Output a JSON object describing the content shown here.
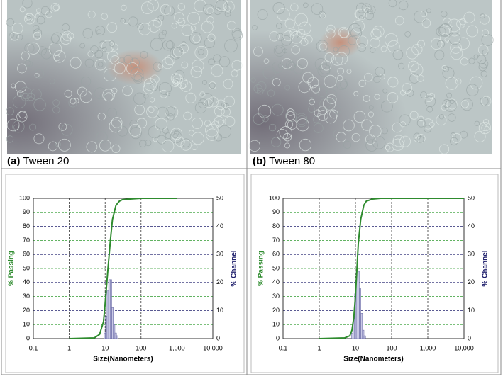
{
  "panels": [
    {
      "label": "(a)",
      "caption": "Tween 20"
    },
    {
      "label": "(b)",
      "caption": "Tween 80"
    }
  ],
  "chart_data": [
    {
      "type": "histogram",
      "xlabel": "Size(Nanometers)",
      "ylabel": "% Passing",
      "y2label": "% Channel",
      "xscale": "log",
      "xlim": [
        0.1,
        10000
      ],
      "xticks": [
        0.1,
        1,
        10,
        100,
        {
          "value": 1000,
          "label": "1,000"
        },
        {
          "value": 10000,
          "label": "10,000"
        }
      ],
      "ylim": [
        0,
        100
      ],
      "yticks": [
        0,
        10,
        20,
        30,
        40,
        50,
        60,
        70,
        80,
        90,
        100
      ],
      "y2lim": [
        0,
        50
      ],
      "y2ticks": [
        0,
        10,
        20,
        30,
        40,
        50
      ],
      "grid": true,
      "axis": "y2",
      "bar_color": "#c9c9e6",
      "bins": [
        9.25,
        10.2,
        11.3,
        12.5,
        13.8,
        15.3,
        16.9,
        18.7,
        20.7,
        22.9
      ],
      "values": [
        2,
        8,
        17,
        21,
        21,
        11,
        5,
        2,
        1
      ],
      "line": {
        "color": "#2e8b2e",
        "x": [
          1,
          5,
          7,
          9,
          10,
          12,
          14,
          16,
          20,
          25,
          30,
          50,
          100,
          1000
        ],
        "values": [
          0,
          0.5,
          3,
          12,
          25,
          50,
          70,
          85,
          95,
          98,
          99,
          99.5,
          100,
          100
        ]
      }
    },
    {
      "type": "histogram",
      "xlabel": "Size(Nanometers)",
      "ylabel": "% Passing",
      "y2label": "% Channel",
      "xscale": "log",
      "xlim": [
        0.1,
        10000
      ],
      "xticks": [
        0.1,
        1,
        10,
        100,
        {
          "value": 1000,
          "label": "1,000"
        },
        {
          "value": 10000,
          "label": "10,000"
        }
      ],
      "ylim": [
        0,
        100
      ],
      "yticks": [
        0,
        10,
        20,
        30,
        40,
        50,
        60,
        70,
        80,
        90,
        100
      ],
      "y2lim": [
        0,
        50
      ],
      "y2ticks": [
        0,
        10,
        20,
        30,
        40,
        50
      ],
      "grid": true,
      "axis": "y2",
      "bar_color": "#c9c9e6",
      "bins": [
        7.8,
        8.6,
        9.5,
        10.5,
        11.6,
        12.8,
        14.1,
        15.6,
        17.2,
        19.0
      ],
      "values": [
        2,
        8,
        16,
        24,
        24,
        18,
        9,
        3,
        1
      ],
      "line": {
        "color": "#2e8b2e",
        "x": [
          1,
          5,
          7,
          8,
          9,
          10,
          11,
          12,
          14,
          17,
          20,
          30,
          50,
          10000
        ],
        "values": [
          0,
          0.5,
          2,
          6,
          15,
          30,
          50,
          68,
          85,
          95,
          98,
          99.5,
          100,
          100
        ]
      }
    }
  ]
}
